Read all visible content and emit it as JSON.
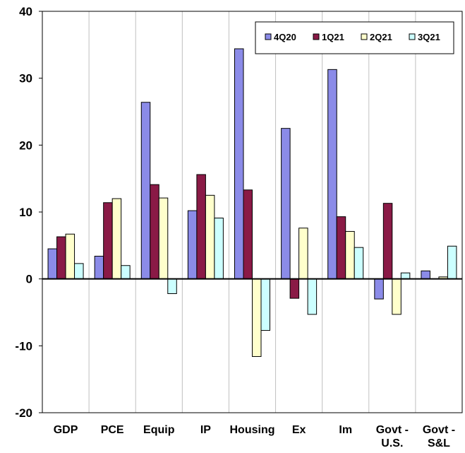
{
  "chart_data": {
    "type": "bar",
    "categories": [
      [
        "GDP"
      ],
      [
        "PCE"
      ],
      [
        "Equip"
      ],
      [
        "IP"
      ],
      [
        "Housing"
      ],
      [
        "Ex"
      ],
      [
        "Im"
      ],
      [
        "Govt -",
        "U.S."
      ],
      [
        "Govt -",
        "S&L"
      ]
    ],
    "series": [
      {
        "name": "4Q20",
        "values": [
          4.5,
          3.4,
          26.4,
          10.2,
          34.4,
          22.5,
          31.3,
          -3.0,
          1.2
        ]
      },
      {
        "name": "1Q21",
        "values": [
          6.3,
          11.4,
          14.1,
          15.6,
          13.3,
          -2.9,
          9.3,
          11.3,
          0.0
        ]
      },
      {
        "name": "2Q21",
        "values": [
          6.7,
          12.0,
          12.1,
          12.5,
          -11.6,
          7.6,
          7.1,
          -5.3,
          0.3
        ]
      },
      {
        "name": "3Q21",
        "values": [
          2.3,
          2.0,
          -2.2,
          9.1,
          -7.7,
          -5.3,
          4.7,
          0.9,
          4.9
        ]
      }
    ],
    "colors": [
      "#8B8BE8",
      "#8A1A46",
      "#FFFFCC",
      "#CCFFFF"
    ],
    "yticks": [
      40,
      30,
      20,
      10,
      0,
      -10,
      -20
    ],
    "ylim": [
      -20,
      40
    ],
    "grid": "vertical",
    "legend_position": "top-right"
  }
}
